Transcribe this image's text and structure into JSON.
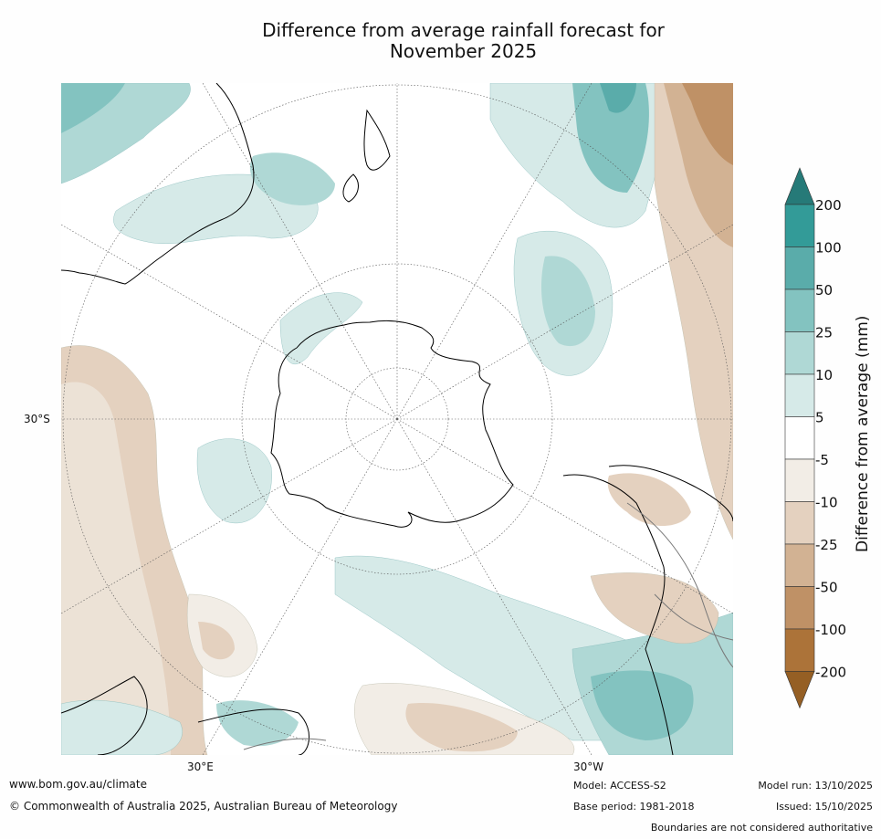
{
  "title": {
    "line1": "Difference from average rainfall forecast for",
    "line2": "November 2025"
  },
  "map": {
    "projection": "south-polar-stereographic",
    "lat_labels": [
      "30°S"
    ],
    "lon_labels": [
      "30°E",
      "30°W"
    ]
  },
  "legend": {
    "label": "Difference from average (mm)",
    "ticks": [
      "200",
      "100",
      "50",
      "25",
      "10",
      "5",
      "-5",
      "-10",
      "-25",
      "-50",
      "-100",
      "-200"
    ],
    "colors": {
      "above_200": "#267a78",
      "100_200": "#339b98",
      "50_100": "#5aacaa",
      "25_50": "#83c3c0",
      "10_25": "#afd8d5",
      "5_10": "#d6eae8",
      "neutral": "#ffffff",
      "m5_m10": "#f2ede6",
      "m10_m25": "#e4d1bf",
      "m25_m50": "#d2b293",
      "m50_m100": "#bf9166",
      "m100_m200": "#ac7339",
      "below_m200": "#955f24"
    }
  },
  "footer": {
    "website": "www.bom.gov.au/climate",
    "copyright": "© Commonwealth of Australia 2025, Australian Bureau of Meteorology",
    "model": "Model: ACCESS-S2",
    "base_period": "Base period: 1981-2018",
    "model_run": "Model run: 13/10/2025",
    "issued": "Issued: 15/10/2025",
    "disclaimer": "Boundaries are not considered authoritative"
  }
}
